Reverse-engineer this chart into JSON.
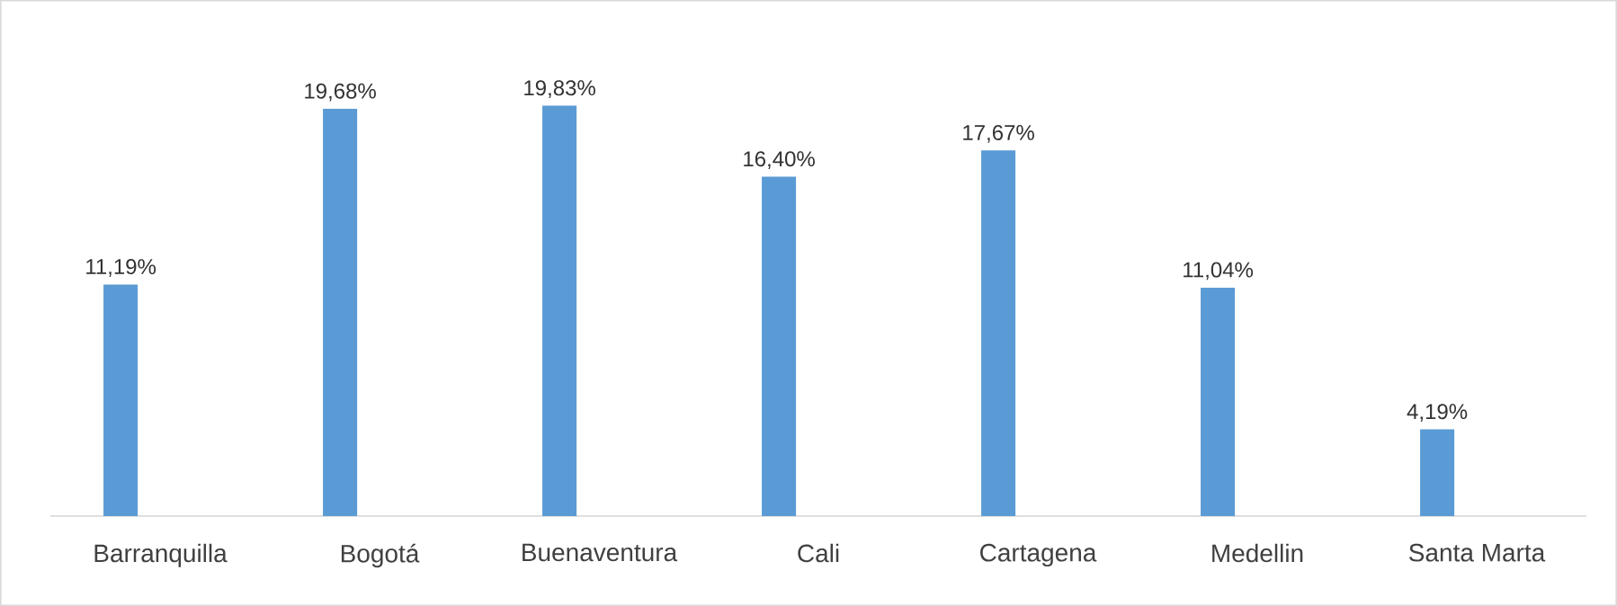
{
  "chart_data": {
    "type": "bar",
    "categories": [
      "Barranquilla",
      "Bogotá",
      "Buenaventura",
      "Cali",
      "Cartagena",
      "Medellin",
      "Santa Marta"
    ],
    "values": [
      11.19,
      19.68,
      19.83,
      16.4,
      17.67,
      11.04,
      4.19
    ],
    "value_labels": [
      "11,19%",
      "19,68%",
      "19,83%",
      "16,40%",
      "17,67%",
      "11,04%",
      "4,19%"
    ],
    "color": "#5b9bd5"
  }
}
